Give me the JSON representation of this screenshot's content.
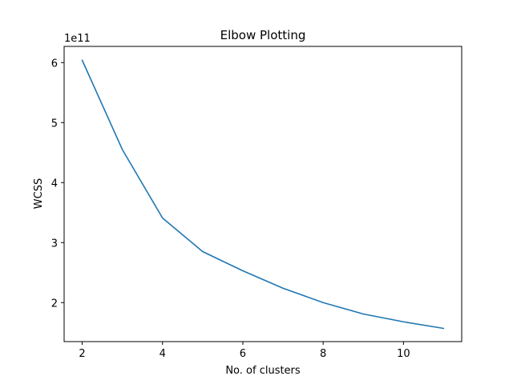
{
  "chart_data": {
    "type": "line",
    "title": "Elbow Plotting",
    "xlabel": "No. of clusters",
    "ylabel": "WCSS",
    "y_offset_label": "1e11",
    "x": [
      2,
      3,
      4,
      5,
      6,
      7,
      8,
      9,
      10,
      11
    ],
    "series": [
      {
        "values": [
          6.04,
          4.55,
          3.41,
          2.85,
          2.53,
          2.24,
          2.0,
          1.81,
          1.68,
          1.57
        ]
      }
    ],
    "xlim": [
      1.55,
      11.45
    ],
    "ylim": [
      1.35,
      6.27
    ],
    "xticks": [
      2,
      4,
      6,
      8,
      10
    ],
    "yticks": [
      2,
      3,
      4,
      5,
      6
    ],
    "color": "#1f77b4",
    "grid": false,
    "legend": "none"
  }
}
